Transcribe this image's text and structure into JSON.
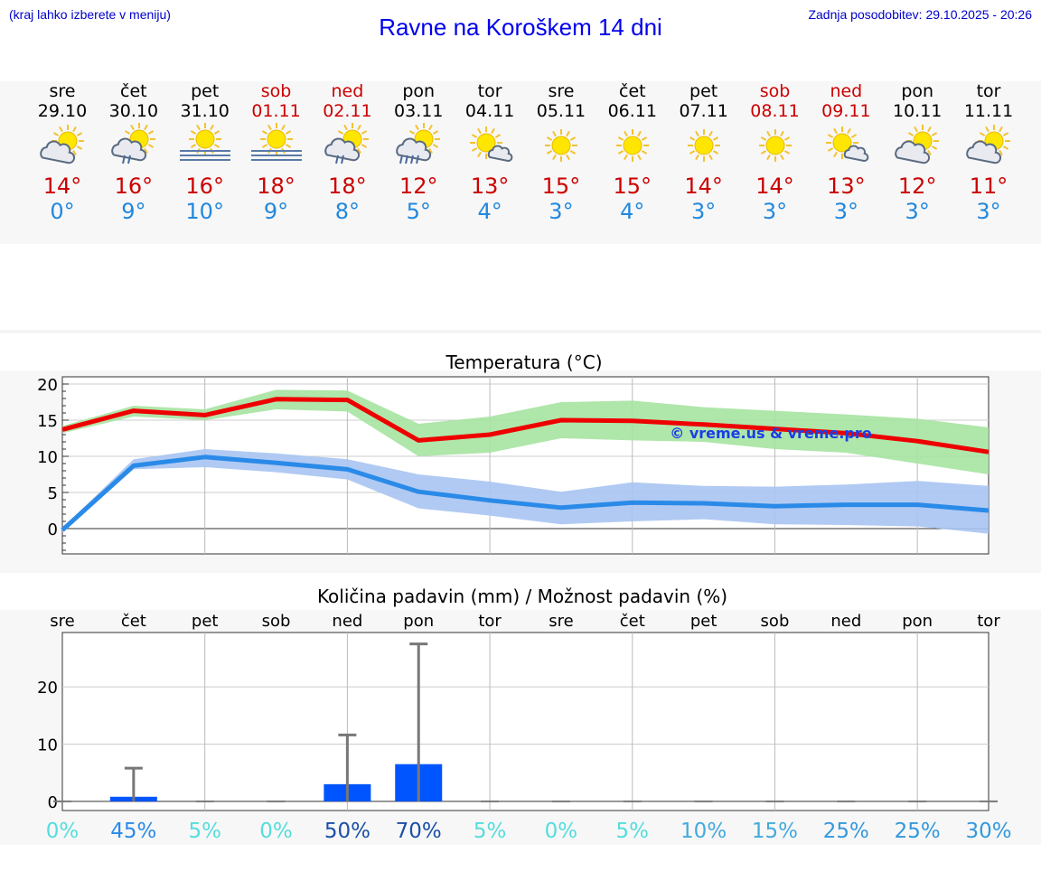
{
  "header": {
    "menu_hint": "(kraj lahko izberete v meniju)",
    "title": "Ravne na Koroškem 14 dni",
    "updated": "Zadnja posodobitev: 29.10.2025 - 20:26"
  },
  "days": [
    {
      "name": "sre",
      "date": "29.10",
      "max": "14°",
      "min": "0°",
      "weekend": false,
      "icon": "partly-cloudy-icon"
    },
    {
      "name": "čet",
      "date": "30.10",
      "max": "16°",
      "min": "9°",
      "weekend": false,
      "icon": "sun-cloud-rain-icon"
    },
    {
      "name": "pet",
      "date": "31.10",
      "max": "16°",
      "min": "10°",
      "weekend": false,
      "icon": "sun-fog-icon"
    },
    {
      "name": "sob",
      "date": "01.11",
      "max": "18°",
      "min": "9°",
      "weekend": true,
      "icon": "sun-fog-icon"
    },
    {
      "name": "ned",
      "date": "02.11",
      "max": "18°",
      "min": "8°",
      "weekend": true,
      "icon": "sun-cloud-rain-icon"
    },
    {
      "name": "pon",
      "date": "03.11",
      "max": "12°",
      "min": "5°",
      "weekend": false,
      "icon": "sun-cloud-heavy-rain-icon"
    },
    {
      "name": "tor",
      "date": "04.11",
      "max": "13°",
      "min": "4°",
      "weekend": false,
      "icon": "sun-small-cloud-icon"
    },
    {
      "name": "sre",
      "date": "05.11",
      "max": "15°",
      "min": "3°",
      "weekend": false,
      "icon": "sun-icon"
    },
    {
      "name": "čet",
      "date": "06.11",
      "max": "15°",
      "min": "4°",
      "weekend": false,
      "icon": "sun-icon"
    },
    {
      "name": "pet",
      "date": "07.11",
      "max": "14°",
      "min": "3°",
      "weekend": false,
      "icon": "sun-icon"
    },
    {
      "name": "sob",
      "date": "08.11",
      "max": "14°",
      "min": "3°",
      "weekend": true,
      "icon": "sun-icon"
    },
    {
      "name": "ned",
      "date": "09.11",
      "max": "13°",
      "min": "3°",
      "weekend": true,
      "icon": "sun-small-cloud-icon"
    },
    {
      "name": "pon",
      "date": "10.11",
      "max": "12°",
      "min": "3°",
      "weekend": false,
      "icon": "partly-cloudy-icon"
    },
    {
      "name": "tor",
      "date": "11.11",
      "max": "11°",
      "min": "3°",
      "weekend": false,
      "icon": "partly-cloudy-icon"
    }
  ],
  "chart_data": [
    {
      "type": "line",
      "title": "Temperatura (°C)",
      "watermark": "© vreme.us & vreme.pro",
      "x": [
        0,
        1,
        2,
        3,
        4,
        5,
        6,
        7,
        8,
        9,
        10,
        11,
        12,
        13
      ],
      "ylim": [
        -3.5,
        21
      ],
      "yticks": [
        0,
        5,
        10,
        15,
        20
      ],
      "series": [
        {
          "name": "max",
          "color": "#ee0000",
          "band_color": "#a6e3a1",
          "values": [
            13.7,
            16.3,
            15.7,
            17.9,
            17.8,
            12.2,
            13.0,
            15.0,
            14.9,
            14.4,
            13.8,
            13.2,
            12.1,
            10.6
          ],
          "band_low": [
            13.2,
            15.5,
            15.0,
            16.5,
            16.2,
            10.0,
            10.5,
            12.5,
            12.2,
            12.0,
            11.0,
            10.5,
            9.0,
            7.5
          ],
          "band_high": [
            14.2,
            17.0,
            16.5,
            19.2,
            19.1,
            14.5,
            15.5,
            17.5,
            17.7,
            16.8,
            16.3,
            15.8,
            15.2,
            14.0
          ]
        },
        {
          "name": "min",
          "color": "#2a8ae8",
          "band_color": "#a9c4f2",
          "values": [
            -0.2,
            8.7,
            9.9,
            9.1,
            8.2,
            5.1,
            3.9,
            2.9,
            3.6,
            3.5,
            3.1,
            3.3,
            3.3,
            2.5
          ],
          "band_low": [
            -0.5,
            8.2,
            8.5,
            7.8,
            6.8,
            2.8,
            1.8,
            0.6,
            1.0,
            1.3,
            0.6,
            0.5,
            0.3,
            -0.7
          ],
          "band_high": [
            0.1,
            9.6,
            11.0,
            10.4,
            9.6,
            7.5,
            6.5,
            5.1,
            6.4,
            5.9,
            5.8,
            6.1,
            6.6,
            5.9
          ]
        }
      ]
    },
    {
      "type": "bar",
      "title": "Količina padavin (mm) / Možnost padavin (%)",
      "categories": [
        "sre",
        "čet",
        "pet",
        "sob",
        "ned",
        "pon",
        "tor",
        "sre",
        "čet",
        "pet",
        "sob",
        "ned",
        "pon",
        "tor"
      ],
      "values": [
        0,
        0.8,
        0,
        0,
        3.0,
        6.5,
        0,
        0,
        0,
        0,
        0,
        0,
        0,
        0
      ],
      "error_max": [
        0,
        5.8,
        0,
        0,
        11.6,
        27.5,
        0,
        0,
        0,
        0,
        0,
        0,
        0,
        0
      ],
      "ylim": [
        -1.6,
        29.5
      ],
      "yticks": [
        0,
        10,
        20
      ],
      "probability_labels": [
        "0%",
        "45%",
        "5%",
        "0%",
        "50%",
        "70%",
        "5%",
        "0%",
        "5%",
        "10%",
        "15%",
        "25%",
        "25%",
        "30%"
      ],
      "probability_colors": [
        "#55dddd",
        "#2a8ae8",
        "#55dddd",
        "#55dddd",
        "#1c4fa8",
        "#1c4fa8",
        "#55dddd",
        "#55dddd",
        "#55dddd",
        "#44aadd",
        "#44aadd",
        "#3399dd",
        "#3399dd",
        "#3399dd"
      ],
      "bar_color": "#0055ff"
    }
  ]
}
